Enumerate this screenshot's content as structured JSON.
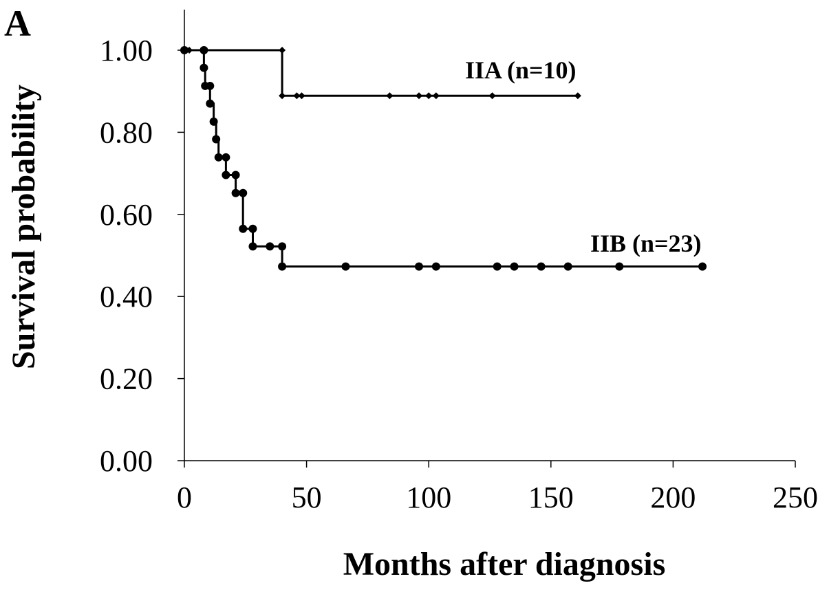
{
  "chart_data": {
    "type": "line",
    "panel_label": "A",
    "xlabel": "Months after diagnosis",
    "ylabel": "Survival probability",
    "xlim": [
      0,
      250
    ],
    "ylim": [
      0,
      1
    ],
    "x_ticks": [
      0,
      50,
      100,
      150,
      200,
      250
    ],
    "x_tick_labels": [
      "0",
      "50",
      "100",
      "150",
      "200",
      "250"
    ],
    "y_ticks": [
      0,
      0.2,
      0.4,
      0.6,
      0.8,
      1.0
    ],
    "y_tick_labels": [
      "0.00",
      "0.20",
      "0.40",
      "0.60",
      "0.80",
      "1.00"
    ],
    "grid": false,
    "series": [
      {
        "name": "IIA (n=10)",
        "marker": "diamond",
        "steps": [
          [
            0,
            1.0
          ],
          [
            40,
            1.0
          ],
          [
            40,
            0.889
          ],
          [
            161,
            0.889
          ]
        ],
        "markers": [
          [
            0,
            1.0
          ],
          [
            2,
            1.0
          ],
          [
            40,
            1.0
          ],
          [
            40,
            0.889
          ],
          [
            46,
            0.889
          ],
          [
            48,
            0.889
          ],
          [
            84,
            0.889
          ],
          [
            96,
            0.889
          ],
          [
            100,
            0.889
          ],
          [
            103,
            0.889
          ],
          [
            126,
            0.889
          ],
          [
            161,
            0.889
          ]
        ]
      },
      {
        "name": "IIB (n=23)",
        "marker": "circle",
        "steps": [
          [
            0,
            1.0
          ],
          [
            8,
            1.0
          ],
          [
            8,
            0.957
          ],
          [
            8.5,
            0.957
          ],
          [
            8.5,
            0.913
          ],
          [
            10.5,
            0.913
          ],
          [
            10.5,
            0.87
          ],
          [
            12,
            0.87
          ],
          [
            12,
            0.826
          ],
          [
            13,
            0.826
          ],
          [
            13,
            0.783
          ],
          [
            14,
            0.783
          ],
          [
            14,
            0.739
          ],
          [
            17,
            0.739
          ],
          [
            17,
            0.696
          ],
          [
            21,
            0.696
          ],
          [
            21,
            0.652
          ],
          [
            24,
            0.652
          ],
          [
            24,
            0.565
          ],
          [
            28,
            0.565
          ],
          [
            28,
            0.522
          ],
          [
            40,
            0.522
          ],
          [
            40,
            0.473
          ],
          [
            212,
            0.473
          ]
        ],
        "markers": [
          [
            0,
            1.0
          ],
          [
            8,
            1.0
          ],
          [
            8,
            0.957
          ],
          [
            8.5,
            0.913
          ],
          [
            10.5,
            0.913
          ],
          [
            10.5,
            0.87
          ],
          [
            12,
            0.826
          ],
          [
            13,
            0.783
          ],
          [
            14,
            0.739
          ],
          [
            17,
            0.739
          ],
          [
            17,
            0.696
          ],
          [
            21,
            0.696
          ],
          [
            21,
            0.652
          ],
          [
            24,
            0.652
          ],
          [
            24,
            0.565
          ],
          [
            28,
            0.565
          ],
          [
            28,
            0.522
          ],
          [
            35,
            0.522
          ],
          [
            40,
            0.522
          ],
          [
            40,
            0.473
          ],
          [
            66,
            0.473
          ],
          [
            96,
            0.473
          ],
          [
            103,
            0.473
          ],
          [
            128,
            0.473
          ],
          [
            135,
            0.473
          ],
          [
            146,
            0.473
          ],
          [
            157,
            0.473
          ],
          [
            178,
            0.473
          ],
          [
            212,
            0.473
          ]
        ]
      }
    ]
  }
}
